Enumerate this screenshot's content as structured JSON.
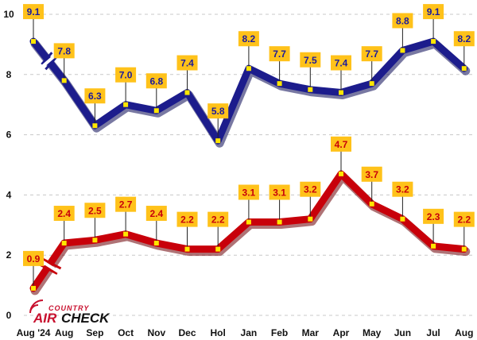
{
  "chart_data": {
    "type": "line",
    "categories": [
      "Aug '24",
      "Aug",
      "Sep",
      "Oct",
      "Nov",
      "Dec",
      "Hol",
      "Jan",
      "Feb",
      "Mar",
      "Apr",
      "May",
      "Jun",
      "Jul",
      "Aug"
    ],
    "ylim": [
      0,
      10
    ],
    "yticks": [
      0,
      2,
      4,
      6,
      8,
      10
    ],
    "grid": "horizontal dashed",
    "legend": "none",
    "axis_break_between": [
      0,
      1
    ],
    "series": [
      {
        "values": [
          9.1,
          7.8,
          6.3,
          7.0,
          6.8,
          7.4,
          5.8,
          8.2,
          7.7,
          7.5,
          7.4,
          7.7,
          8.8,
          9.1,
          8.2
        ],
        "labels": [
          "9.1",
          "7.8",
          "6.3",
          "7.0",
          "6.8",
          "7.4",
          "5.8",
          "8.2",
          "7.7",
          "7.5",
          "7.4",
          "7.7",
          "8.8",
          "9.1",
          "8.2"
        ],
        "color": "#1c1c8c",
        "shadow": "#0a0a55",
        "label_text_color": "#1a1a9c"
      },
      {
        "values": [
          0.9,
          2.4,
          2.5,
          2.7,
          2.4,
          2.2,
          2.2,
          3.1,
          3.1,
          3.2,
          4.7,
          3.7,
          3.2,
          2.3,
          2.2
        ],
        "labels": [
          "0.9",
          "2.4",
          "2.5",
          "2.7",
          "2.4",
          "2.2",
          "2.2",
          "3.1",
          "3.1",
          "3.2",
          "4.7",
          "3.7",
          "3.2",
          "2.3",
          "2.2"
        ],
        "color": "#c8000a",
        "shadow": "#6e0005",
        "label_text_color": "#c8000a"
      }
    ]
  },
  "colors": {
    "label_box": "#ffc21a",
    "marker": "#ffe600",
    "grid": "#c8c8c8"
  },
  "logo": {
    "top": "COUNTRY",
    "air": "AIR",
    "check": "CHECK"
  }
}
